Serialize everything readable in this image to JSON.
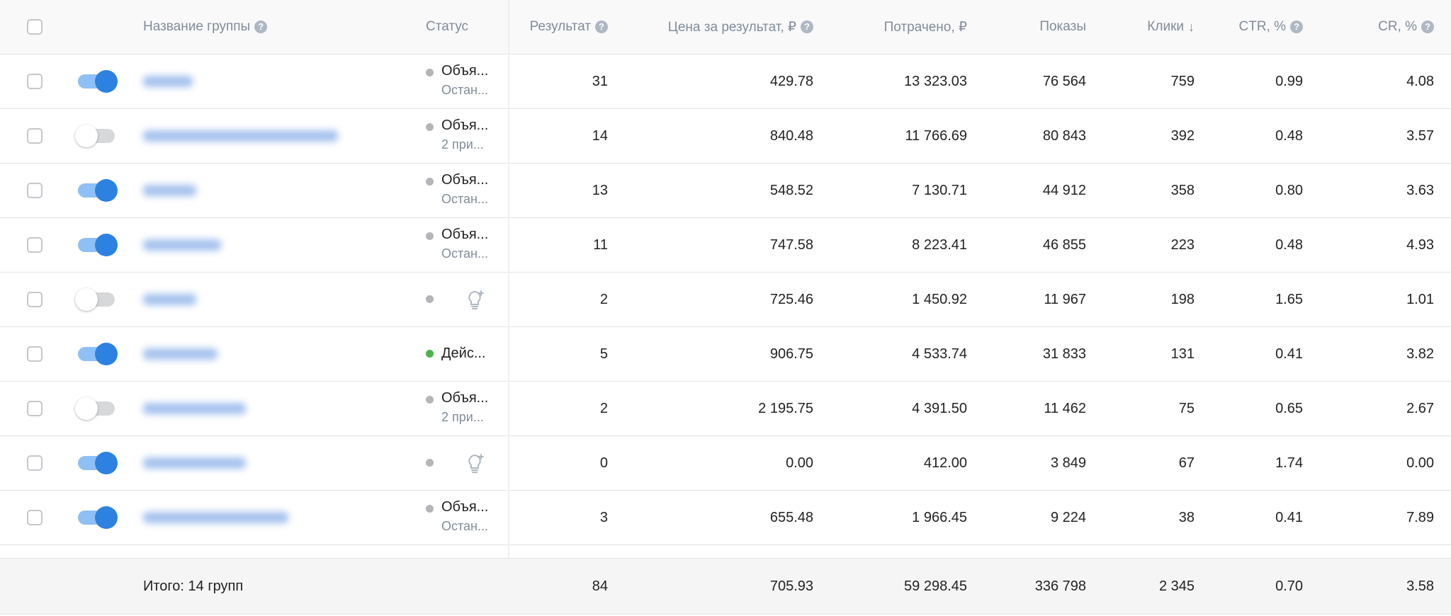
{
  "header": {
    "columns": [
      "Название группы",
      "Статус",
      "Результат",
      "Цена за результат, ₽",
      "Потрачено, ₽",
      "Показы",
      "Клики",
      "CTR, %",
      "CR, %"
    ]
  },
  "rows": [
    {
      "enabled": true,
      "dot": "#b3b5b8",
      "status": "Объя...",
      "substatus": "Остан...",
      "values": [
        "31",
        "429.78",
        "13 323.03",
        "76 564",
        "759",
        "0.99",
        "4.08"
      ]
    },
    {
      "enabled": false,
      "dot": "#b3b5b8",
      "status": "Объя...",
      "substatus": "2 при...",
      "values": [
        "14",
        "840.48",
        "11 766.69",
        "80 843",
        "392",
        "0.48",
        "3.57"
      ]
    },
    {
      "enabled": true,
      "dot": "#b3b5b8",
      "status": "Объя...",
      "substatus": "Остан...",
      "values": [
        "13",
        "548.52",
        "7 130.71",
        "44 912",
        "358",
        "0.80",
        "3.63"
      ]
    },
    {
      "enabled": true,
      "dot": "#b3b5b8",
      "status": "Объя...",
      "substatus": "Остан...",
      "values": [
        "11",
        "747.58",
        "8 223.41",
        "46 855",
        "223",
        "0.48",
        "4.93"
      ]
    },
    {
      "enabled": false,
      "dot": "#b3b5b8",
      "values": [
        "2",
        "725.46",
        "1 450.92",
        "11 967",
        "198",
        "1.65",
        "1.01"
      ]
    },
    {
      "enabled": true,
      "dot": "#4bb34b",
      "status": "Дейс...",
      "values": [
        "5",
        "906.75",
        "4 533.74",
        "31 833",
        "131",
        "0.41",
        "3.82"
      ]
    },
    {
      "enabled": false,
      "dot": "#b3b5b8",
      "status": "Объя...",
      "substatus": "2 при...",
      "values": [
        "2",
        "2 195.75",
        "4 391.50",
        "11 462",
        "75",
        "0.65",
        "2.67"
      ]
    },
    {
      "enabled": true,
      "dot": "#b3b5b8",
      "values": [
        "0",
        "0.00",
        "412.00",
        "3 849",
        "67",
        "1.74",
        "0.00"
      ]
    },
    {
      "enabled": true,
      "dot": "#b3b5b8",
      "status": "Объя...",
      "substatus": "Остан...",
      "values": [
        "3",
        "655.48",
        "1 966.45",
        "9 224",
        "38",
        "0.41",
        "7.89"
      ]
    }
  ],
  "footer": {
    "label": "Итого: 14 групп",
    "values": [
      "84",
      "705.93",
      "59 298.45",
      "336 798",
      "2 345",
      "0.70",
      "3.58"
    ]
  }
}
